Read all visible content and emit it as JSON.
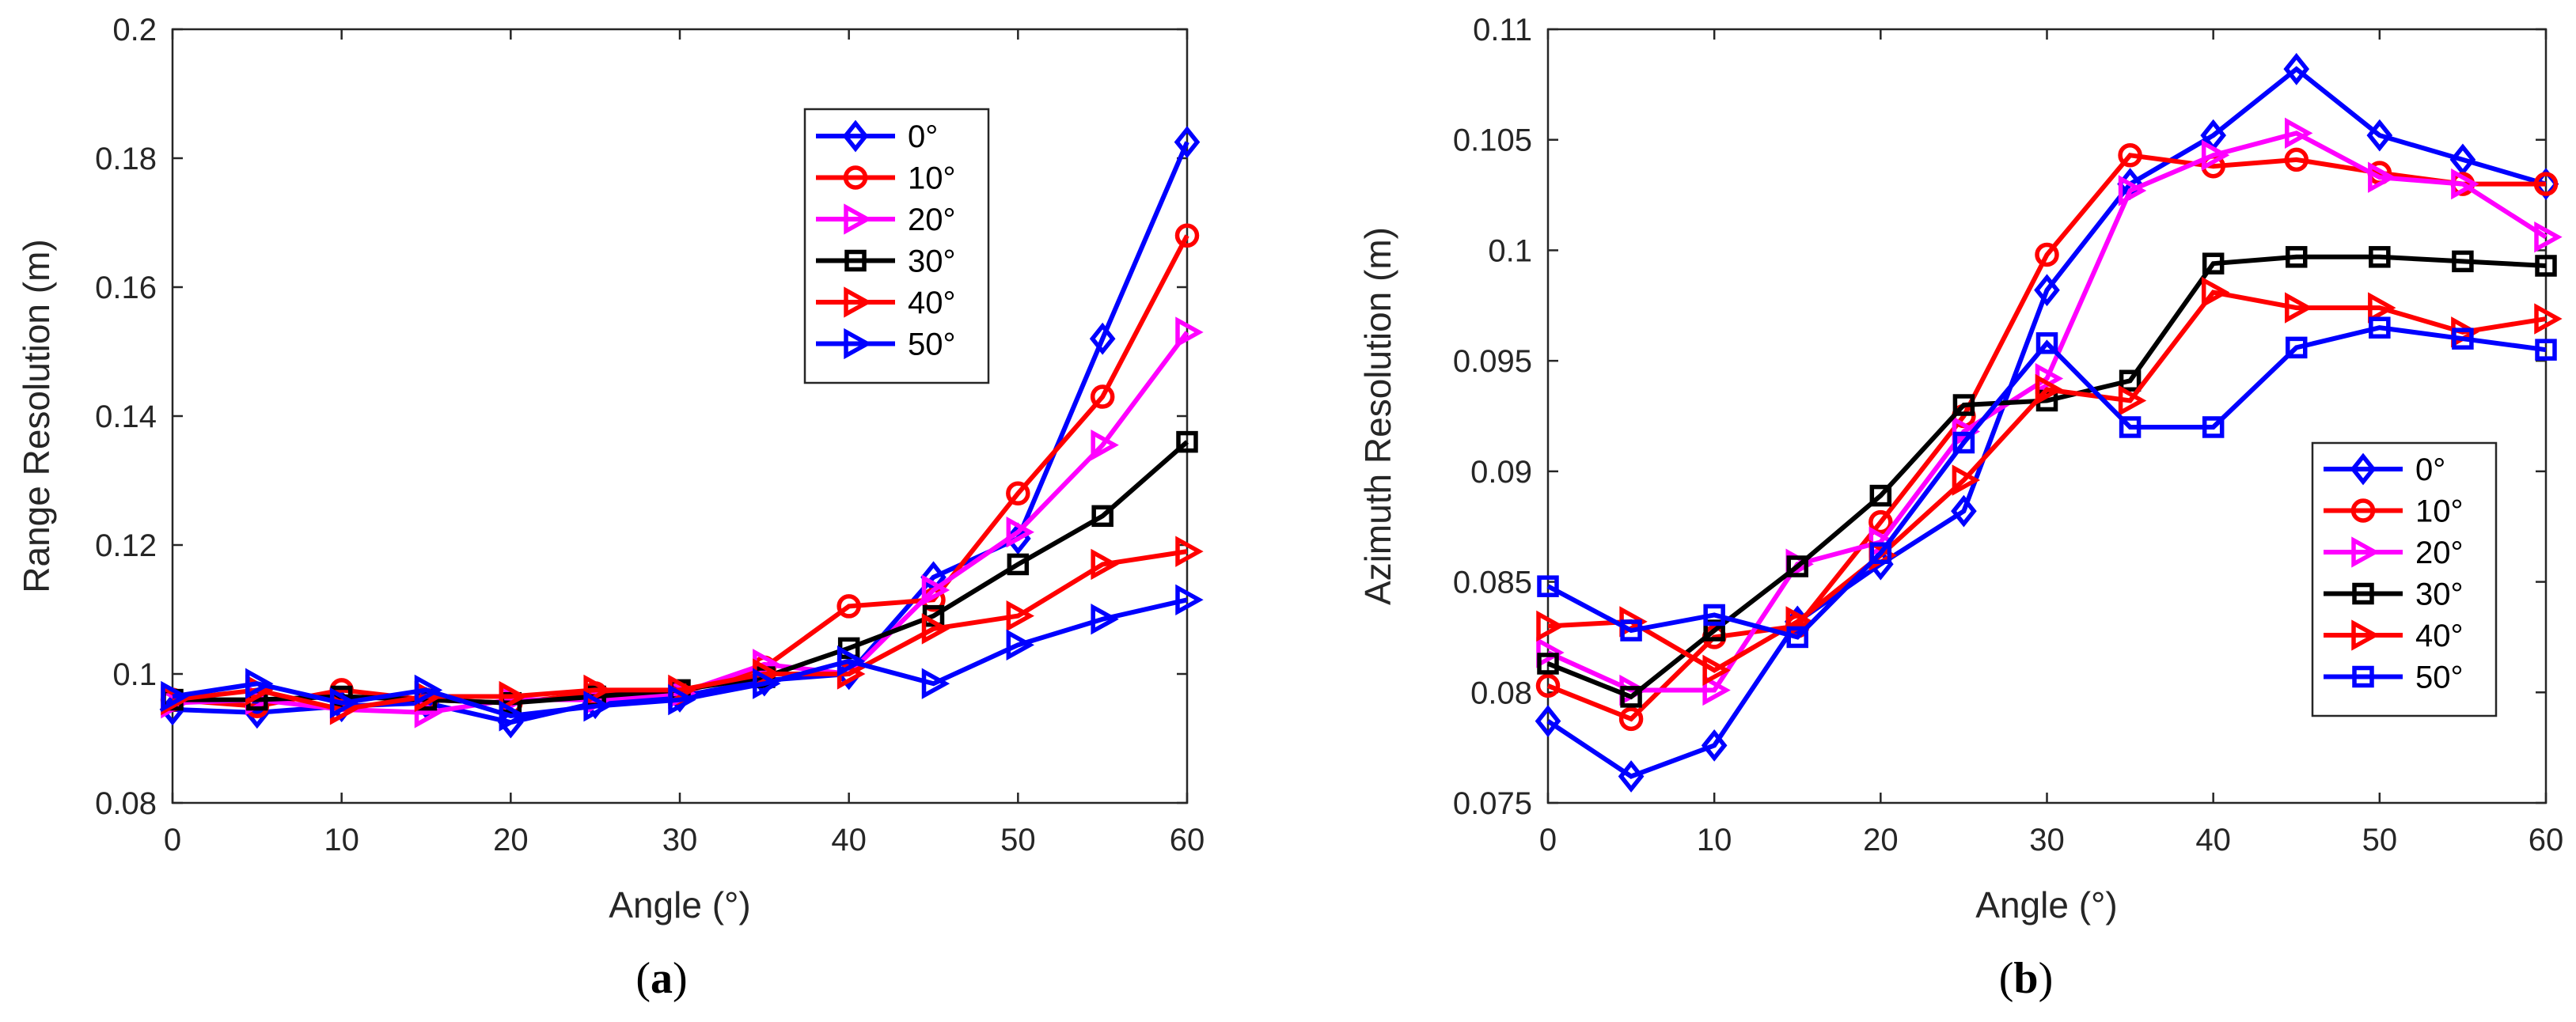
{
  "chart_data": [
    {
      "type": "line",
      "caption_open": "(",
      "caption_letter": "a",
      "caption_close": ")",
      "title": "",
      "xlabel": "Angle (°)",
      "ylabel": "Range Resolution (m)",
      "xlim": [
        0,
        60
      ],
      "ylim": [
        0.08,
        0.2
      ],
      "xticks": [
        "0",
        "10",
        "20",
        "30",
        "40",
        "50",
        "60"
      ],
      "yticks": [
        "0.08",
        "0.1",
        "0.12",
        "0.14",
        "0.16",
        "0.18",
        "0.2"
      ],
      "legend_position": "top-right",
      "x": [
        0,
        5,
        10,
        15,
        20,
        25,
        30,
        35,
        40,
        45,
        50,
        55,
        60
      ],
      "series": [
        {
          "name": "0°",
          "color": "#0000ff",
          "marker": "diamond",
          "values": [
            0.0945,
            0.094,
            0.095,
            0.0955,
            0.0925,
            0.0955,
            0.0965,
            0.099,
            0.1,
            0.115,
            0.121,
            0.152,
            0.1825
          ]
        },
        {
          "name": "10°",
          "color": "#ff0000",
          "marker": "circle",
          "values": [
            0.096,
            0.095,
            0.0975,
            0.096,
            0.0955,
            0.097,
            0.097,
            0.101,
            0.1105,
            0.1115,
            0.128,
            0.143,
            0.168
          ]
        },
        {
          "name": "20°",
          "color": "#ff00ff",
          "marker": "triangle-right",
          "values": [
            0.0955,
            0.096,
            0.0945,
            0.094,
            0.096,
            0.096,
            0.097,
            0.1015,
            0.1,
            0.113,
            0.122,
            0.1355,
            0.153
          ]
        },
        {
          "name": "30°",
          "color": "#000000",
          "marker": "square",
          "values": [
            0.096,
            0.096,
            0.0965,
            0.096,
            0.0955,
            0.0965,
            0.0975,
            0.0995,
            0.104,
            0.109,
            0.117,
            0.1245,
            0.136
          ]
        },
        {
          "name": "40°",
          "color": "#ff0000",
          "marker": "triangle-right",
          "values": [
            0.096,
            0.0975,
            0.0945,
            0.0965,
            0.0965,
            0.0975,
            0.0975,
            0.1,
            0.1,
            0.107,
            0.109,
            0.117,
            0.119
          ]
        },
        {
          "name": "50°",
          "color": "#0000ff",
          "marker": "triangle-right",
          "values": [
            0.0965,
            0.0985,
            0.0955,
            0.0975,
            0.0935,
            0.095,
            0.096,
            0.0985,
            0.102,
            0.0985,
            0.1045,
            0.1085,
            0.1115
          ]
        }
      ]
    },
    {
      "type": "line",
      "caption_open": "(",
      "caption_letter": "b",
      "caption_close": ")",
      "title": "",
      "xlabel": "Angle (°)",
      "ylabel": "Azimuth Resolution (m)",
      "xlim": [
        0,
        60
      ],
      "ylim": [
        0.075,
        0.11
      ],
      "xticks": [
        "0",
        "10",
        "20",
        "30",
        "40",
        "50",
        "60"
      ],
      "yticks": [
        "0.075",
        "0.08",
        "0.085",
        "0.09",
        "0.095",
        "0.1",
        "0.105",
        "0.11"
      ],
      "legend_position": "bottom-right",
      "x": [
        0,
        5,
        10,
        15,
        20,
        25,
        30,
        35,
        40,
        45,
        50,
        55,
        60
      ],
      "series": [
        {
          "name": "0°",
          "color": "#0000ff",
          "marker": "diamond",
          "values": [
            0.0787,
            0.0762,
            0.0776,
            0.0832,
            0.0858,
            0.0882,
            0.0982,
            0.103,
            0.1052,
            0.1082,
            0.1052,
            0.1041,
            0.103
          ]
        },
        {
          "name": "10°",
          "color": "#ff0000",
          "marker": "circle",
          "values": [
            0.0803,
            0.0788,
            0.0825,
            0.083,
            0.0877,
            0.0925,
            0.0998,
            0.1043,
            0.1038,
            0.1041,
            0.1035,
            0.103,
            0.103
          ]
        },
        {
          "name": "20°",
          "color": "#ff00ff",
          "marker": "triangle-right",
          "values": [
            0.0818,
            0.0801,
            0.0801,
            0.0858,
            0.0868,
            0.0918,
            0.0942,
            0.1027,
            0.1043,
            0.1053,
            0.1033,
            0.103,
            0.1006
          ]
        },
        {
          "name": "30°",
          "color": "#000000",
          "marker": "square",
          "values": [
            0.0813,
            0.0798,
            0.0828,
            0.0857,
            0.0889,
            0.093,
            0.0932,
            0.0941,
            0.0994,
            0.0997,
            0.0997,
            0.0995,
            0.0993
          ]
        },
        {
          "name": "40°",
          "color": "#ff0000",
          "marker": "triangle-right",
          "values": [
            0.083,
            0.0832,
            0.081,
            0.0832,
            0.0862,
            0.0896,
            0.0937,
            0.0932,
            0.0981,
            0.0974,
            0.0974,
            0.0963,
            0.0969
          ]
        },
        {
          "name": "50°",
          "color": "#0000ff",
          "marker": "square",
          "values": [
            0.0848,
            0.0828,
            0.0835,
            0.0825,
            0.0863,
            0.0913,
            0.0958,
            0.092,
            0.092,
            0.0956,
            0.0965,
            0.096,
            0.0955
          ]
        }
      ]
    }
  ]
}
